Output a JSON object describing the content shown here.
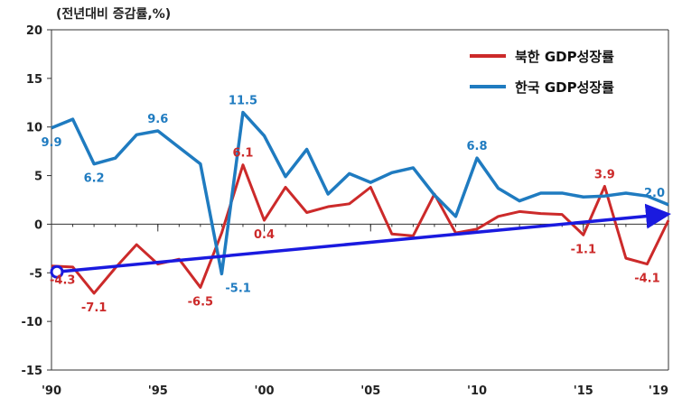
{
  "chart_data": {
    "type": "line",
    "unit_label": "(전년대비 증감률,%)",
    "x": [
      1990,
      1991,
      1992,
      1993,
      1994,
      1995,
      1996,
      1997,
      1998,
      1999,
      2000,
      2001,
      2002,
      2003,
      2004,
      2005,
      2006,
      2007,
      2008,
      2009,
      2010,
      2011,
      2012,
      2013,
      2014,
      2015,
      2016,
      2017,
      2018,
      2019
    ],
    "x_tick_values": [
      1990,
      1995,
      2000,
      2005,
      2010,
      2015,
      2019
    ],
    "x_tick_labels": [
      "'90",
      "'95",
      "'00",
      "'05",
      "'10",
      "'15",
      "'19"
    ],
    "ylim": [
      -15,
      20
    ],
    "y_ticks": [
      -15,
      -10,
      -5,
      0,
      5,
      10,
      15,
      20
    ],
    "series": [
      {
        "name": "북한 GDP성장률",
        "color": "#cc2a2a",
        "values": [
          -4.3,
          -4.4,
          -7.1,
          -4.5,
          -2.1,
          -4.1,
          -3.6,
          -6.5,
          -0.9,
          6.1,
          0.4,
          3.8,
          1.2,
          1.8,
          2.1,
          3.8,
          -1.0,
          -1.2,
          3.1,
          -0.9,
          -0.5,
          0.8,
          1.3,
          1.1,
          1.0,
          -1.1,
          3.9,
          -3.5,
          -4.1,
          0.4
        ]
      },
      {
        "name": "한국 GDP성장률",
        "color": "#1f7bc0",
        "values": [
          9.9,
          10.8,
          6.2,
          6.8,
          9.2,
          9.6,
          7.9,
          6.2,
          -5.1,
          11.5,
          9.1,
          4.9,
          7.7,
          3.1,
          5.2,
          4.3,
          5.3,
          5.8,
          3.0,
          0.8,
          6.8,
          3.7,
          2.4,
          3.2,
          3.2,
          2.8,
          2.9,
          3.2,
          2.9,
          2.0
        ]
      }
    ],
    "data_labels": [
      {
        "series": 0,
        "x": 1990,
        "text": "-4.3",
        "pos": "below-right"
      },
      {
        "series": 0,
        "x": 1992,
        "text": "-7.1",
        "pos": "below"
      },
      {
        "series": 0,
        "x": 1997,
        "text": "-6.5",
        "pos": "below"
      },
      {
        "series": 0,
        "x": 1999,
        "text": "6.1",
        "pos": "above"
      },
      {
        "series": 0,
        "x": 2000,
        "text": "0.4",
        "pos": "below"
      },
      {
        "series": 0,
        "x": 2015,
        "text": "-1.1",
        "pos": "below"
      },
      {
        "series": 0,
        "x": 2016,
        "text": "3.9",
        "pos": "above"
      },
      {
        "series": 0,
        "x": 2018,
        "text": "-4.1",
        "pos": "below"
      },
      {
        "series": 1,
        "x": 1990,
        "text": "9.9",
        "pos": "below"
      },
      {
        "series": 1,
        "x": 1992,
        "text": "6.2",
        "pos": "below"
      },
      {
        "series": 1,
        "x": 1995,
        "text": "9.6",
        "pos": "above"
      },
      {
        "series": 1,
        "x": 1998,
        "text": "-5.1",
        "pos": "below-right"
      },
      {
        "series": 1,
        "x": 1999,
        "text": "11.5",
        "pos": "above"
      },
      {
        "series": 1,
        "x": 2010,
        "text": "6.8",
        "pos": "above"
      },
      {
        "series": 1,
        "x": 2019,
        "text": "2.0",
        "pos": "above-left"
      }
    ],
    "trend_arrow": {
      "color": "#1a1adf",
      "from": [
        1990,
        -4.9
      ],
      "to": [
        2019,
        1.0
      ]
    },
    "legend": "top-right",
    "grid": false
  }
}
